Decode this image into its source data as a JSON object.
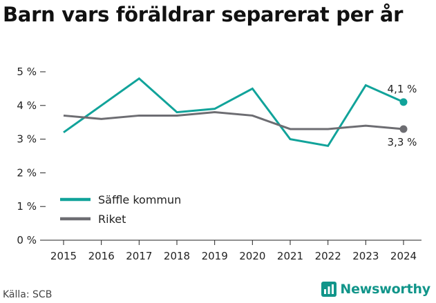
{
  "title": "Barn vars föräldrar separerat per år",
  "source": "Källa: SCB",
  "brand": {
    "name": "Newsworthy",
    "color": "#11958a"
  },
  "chart_data": {
    "type": "line",
    "x": [
      2015,
      2016,
      2017,
      2018,
      2019,
      2020,
      2021,
      2022,
      2023,
      2024
    ],
    "ylim": [
      0,
      5
    ],
    "yticks": [
      "0 %",
      "1 %",
      "2 %",
      "3 %",
      "4 %",
      "5 %"
    ],
    "xticks": [
      "2015",
      "2016",
      "2017",
      "2018",
      "2019",
      "2020",
      "2021",
      "2022",
      "2023",
      "2024"
    ],
    "grid": false,
    "legend": "bottom-left",
    "series": [
      {
        "name": "Säffle kommun",
        "color": "#11a39a",
        "values": [
          3.2,
          4.0,
          4.8,
          3.8,
          3.9,
          4.5,
          3.0,
          2.8,
          4.6,
          4.1
        ],
        "end_label": "4,1 %"
      },
      {
        "name": "Riket",
        "color": "#6d6d72",
        "values": [
          3.7,
          3.6,
          3.7,
          3.7,
          3.8,
          3.7,
          3.3,
          3.3,
          3.4,
          3.3
        ],
        "end_label": "3,3 %"
      }
    ]
  }
}
